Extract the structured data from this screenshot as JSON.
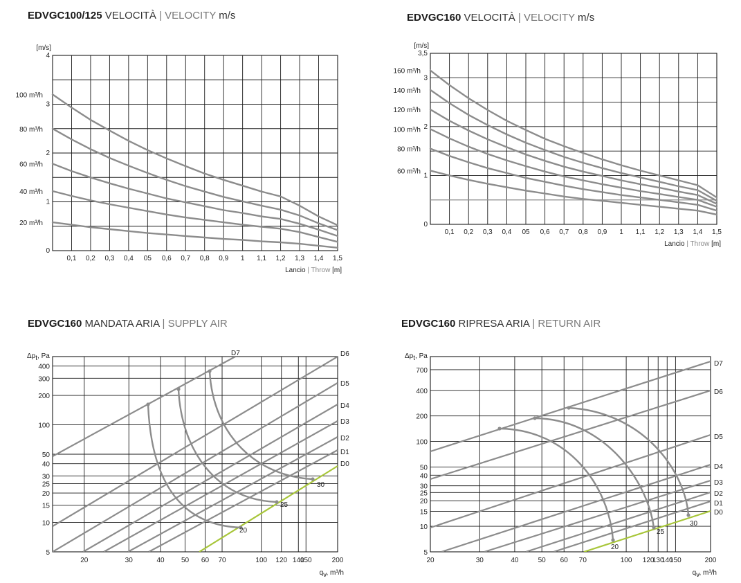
{
  "chart_data": [
    {
      "id": "c1",
      "type": "line",
      "title_bold": "EDVGC100/125",
      "title_reg": " VELOCITÀ",
      "title_light": " | VELOCITY",
      "title_unit": " m/s",
      "ylabel": "[m/s]",
      "xlabel_main": "Lancio",
      "xlabel_light": " | Throw",
      "xlabel_unit": " [m]",
      "xlim": [
        0,
        1.5
      ],
      "ylim": [
        0,
        4
      ],
      "x_ticks": [
        "0,1",
        "0,2",
        "0,3",
        "0,4",
        "05",
        "0,6",
        "0,7",
        "0,8",
        "0,9",
        "1",
        "1,1",
        "1,2",
        "1,3",
        "1,4",
        "1,5"
      ],
      "y_ticks": [
        {
          "value": 0,
          "label": "0"
        },
        {
          "value": 1,
          "label": "1"
        },
        {
          "value": 2,
          "label": "2"
        },
        {
          "value": 3,
          "label": "3"
        },
        {
          "value": 4,
          "label": "4"
        }
      ],
      "series": [
        {
          "name": "100 m³/h",
          "label_y": 3.2,
          "x": [
            0,
            0.1,
            0.2,
            0.3,
            0.4,
            0.5,
            0.6,
            0.7,
            0.8,
            0.9,
            1.0,
            1.1,
            1.2,
            1.3,
            1.4,
            1.5
          ],
          "y": [
            3.2,
            2.93,
            2.68,
            2.46,
            2.25,
            2.06,
            1.89,
            1.73,
            1.58,
            1.45,
            1.33,
            1.21,
            1.11,
            0.92,
            0.7,
            0.52
          ]
        },
        {
          "name": "80 m³/h",
          "label_y": 2.5,
          "x": [
            0,
            0.1,
            0.2,
            0.3,
            0.4,
            0.5,
            0.6,
            0.7,
            0.8,
            0.9,
            1.0,
            1.1,
            1.2,
            1.3,
            1.4,
            1.5
          ],
          "y": [
            2.5,
            2.28,
            2.08,
            1.9,
            1.74,
            1.59,
            1.45,
            1.32,
            1.21,
            1.1,
            1.01,
            0.92,
            0.84,
            0.72,
            0.56,
            0.42
          ]
        },
        {
          "name": "60 m³/h",
          "label_y": 1.78,
          "x": [
            0,
            0.1,
            0.2,
            0.3,
            0.4,
            0.5,
            0.6,
            0.7,
            0.8,
            0.9,
            1.0,
            1.1,
            1.2,
            1.3,
            1.4,
            1.5
          ],
          "y": [
            1.78,
            1.63,
            1.5,
            1.38,
            1.27,
            1.17,
            1.07,
            0.99,
            0.91,
            0.83,
            0.77,
            0.7,
            0.65,
            0.55,
            0.43,
            0.3
          ]
        },
        {
          "name": "40 m³/h",
          "label_y": 1.22,
          "x": [
            0,
            0.1,
            0.2,
            0.3,
            0.4,
            0.5,
            0.6,
            0.7,
            0.8,
            0.9,
            1.0,
            1.1,
            1.2,
            1.3,
            1.4,
            1.5
          ],
          "y": [
            1.22,
            1.12,
            1.03,
            0.95,
            0.88,
            0.81,
            0.74,
            0.68,
            0.63,
            0.58,
            0.53,
            0.49,
            0.45,
            0.38,
            0.28,
            0.18
          ]
        },
        {
          "name": "20 m³/h",
          "label_y": 0.58,
          "x": [
            0,
            0.1,
            0.2,
            0.3,
            0.4,
            0.5,
            0.6,
            0.7,
            0.8,
            0.9,
            1.0,
            1.1,
            1.2,
            1.3,
            1.4,
            1.5
          ],
          "y": [
            0.58,
            0.53,
            0.48,
            0.44,
            0.4,
            0.36,
            0.33,
            0.3,
            0.27,
            0.24,
            0.22,
            0.19,
            0.17,
            0.14,
            0.1,
            0.06
          ]
        }
      ]
    },
    {
      "id": "c2",
      "type": "line",
      "title_bold": "EDVGC160",
      "title_reg": " VELOCITÀ",
      "title_light": " | VELOCITY",
      "title_unit": " m/s",
      "ylabel": "[m/s]",
      "xlabel_main": "Lancio",
      "xlabel_light": " | Throw",
      "xlabel_unit": " [m]",
      "xlim": [
        0,
        1.5
      ],
      "ylim": [
        0,
        3.5
      ],
      "x_ticks": [
        "0,1",
        "0,2",
        "0,3",
        "0,4",
        "05",
        "0,6",
        "0,7",
        "0,8",
        "0,9",
        "1",
        "1,1",
        "1,2",
        "1,3",
        "1,4",
        "1,5"
      ],
      "y_ticks": [
        {
          "value": 0,
          "label": "0"
        },
        {
          "value": 1,
          "label": "1"
        },
        {
          "value": 2,
          "label": "2"
        },
        {
          "value": 3,
          "label": "3"
        },
        {
          "value": 3.5,
          "label": "3,5"
        }
      ],
      "reference_line_y": 0.5,
      "series": [
        {
          "name": "160 m³/h",
          "label_y": 3.15,
          "x": [
            0,
            0.1,
            0.2,
            0.3,
            0.4,
            0.5,
            0.6,
            0.7,
            0.8,
            0.9,
            1.0,
            1.1,
            1.2,
            1.3,
            1.4,
            1.5
          ],
          "y": [
            3.15,
            2.85,
            2.58,
            2.34,
            2.12,
            1.93,
            1.75,
            1.6,
            1.46,
            1.33,
            1.21,
            1.1,
            1.0,
            0.9,
            0.8,
            0.55
          ]
        },
        {
          "name": "140 m³/h",
          "label_y": 2.75,
          "x": [
            0,
            0.1,
            0.2,
            0.3,
            0.4,
            0.5,
            0.6,
            0.7,
            0.8,
            0.9,
            1.0,
            1.1,
            1.2,
            1.3,
            1.4,
            1.5
          ],
          "y": [
            2.75,
            2.48,
            2.24,
            2.03,
            1.84,
            1.67,
            1.52,
            1.38,
            1.26,
            1.15,
            1.05,
            0.96,
            0.87,
            0.78,
            0.7,
            0.48
          ]
        },
        {
          "name": "120 m³/h",
          "label_y": 2.35,
          "x": [
            0,
            0.1,
            0.2,
            0.3,
            0.4,
            0.5,
            0.6,
            0.7,
            0.8,
            0.9,
            1.0,
            1.1,
            1.2,
            1.3,
            1.4,
            1.5
          ],
          "y": [
            2.35,
            2.12,
            1.92,
            1.74,
            1.58,
            1.43,
            1.3,
            1.18,
            1.08,
            0.99,
            0.9,
            0.82,
            0.75,
            0.67,
            0.6,
            0.42
          ]
        },
        {
          "name": "100 m³/h",
          "label_y": 1.95,
          "x": [
            0,
            0.1,
            0.2,
            0.3,
            0.4,
            0.5,
            0.6,
            0.7,
            0.8,
            0.9,
            1.0,
            1.1,
            1.2,
            1.3,
            1.4,
            1.5
          ],
          "y": [
            1.95,
            1.76,
            1.59,
            1.44,
            1.31,
            1.19,
            1.08,
            0.98,
            0.9,
            0.82,
            0.75,
            0.68,
            0.62,
            0.56,
            0.5,
            0.36
          ]
        },
        {
          "name": "80 m³/h",
          "label_y": 1.55,
          "x": [
            0,
            0.1,
            0.2,
            0.3,
            0.4,
            0.5,
            0.6,
            0.7,
            0.8,
            0.9,
            1.0,
            1.1,
            1.2,
            1.3,
            1.4,
            1.5
          ],
          "y": [
            1.55,
            1.4,
            1.27,
            1.15,
            1.05,
            0.95,
            0.87,
            0.79,
            0.72,
            0.66,
            0.6,
            0.55,
            0.5,
            0.45,
            0.4,
            0.28
          ]
        },
        {
          "name": "60 m³/h",
          "label_y": 1.1,
          "x": [
            0,
            0.1,
            0.2,
            0.3,
            0.4,
            0.5,
            0.6,
            0.7,
            0.8,
            0.9,
            1.0,
            1.1,
            1.2,
            1.3,
            1.4,
            1.5
          ],
          "y": [
            1.1,
            1.0,
            0.91,
            0.83,
            0.76,
            0.69,
            0.63,
            0.57,
            0.52,
            0.48,
            0.44,
            0.4,
            0.36,
            0.32,
            0.28,
            0.2
          ]
        }
      ]
    },
    {
      "id": "c3",
      "type": "line",
      "title_bold": "EDVGC160",
      "title_reg": " MANDATA ARIA",
      "title_light": " | SUPPLY AIR",
      "ylabel_main": "Δp",
      "ylabel_sub": "t",
      "ylabel_unit": ", Pa",
      "xlabel_main": "q",
      "xlabel_sub": "v",
      "xlabel_unit": ", m³/h",
      "xlim": [
        15,
        200
      ],
      "ylim": [
        5,
        500
      ],
      "x_ticks": [
        20,
        30,
        40,
        50,
        60,
        70,
        100,
        120,
        140,
        150,
        200
      ],
      "y_ticks": [
        5,
        10,
        15,
        20,
        25,
        30,
        40,
        50,
        100,
        200,
        300,
        400
      ],
      "line_labels": [
        "D7",
        "D6",
        "D5",
        "D4",
        "D3",
        "D2",
        "D1",
        "D0"
      ],
      "curve_labels": [
        "20",
        "25",
        "30"
      ]
    },
    {
      "id": "c4",
      "type": "line",
      "title_bold": "EDVGC160",
      "title_reg": " RIPRESA ARIA",
      "title_light": " | RETURN AIR",
      "ylabel_main": "Δp",
      "ylabel_sub": "t",
      "ylabel_unit": ", Pa",
      "xlabel_main": "q",
      "xlabel_sub": "v",
      "xlabel_unit": ", m³/h",
      "xlim": [
        20,
        200
      ],
      "ylim": [
        5,
        1000
      ],
      "x_ticks": [
        20,
        30,
        40,
        50,
        60,
        70,
        100,
        120,
        130,
        140,
        150,
        200
      ],
      "y_ticks": [
        5,
        10,
        15,
        20,
        25,
        30,
        40,
        50,
        100,
        200,
        400,
        700
      ],
      "line_labels": [
        "D7",
        "D6",
        "D5",
        "D4",
        "D3",
        "D2",
        "D1",
        "D0"
      ],
      "curve_labels": [
        "20",
        "25",
        "30"
      ]
    }
  ]
}
